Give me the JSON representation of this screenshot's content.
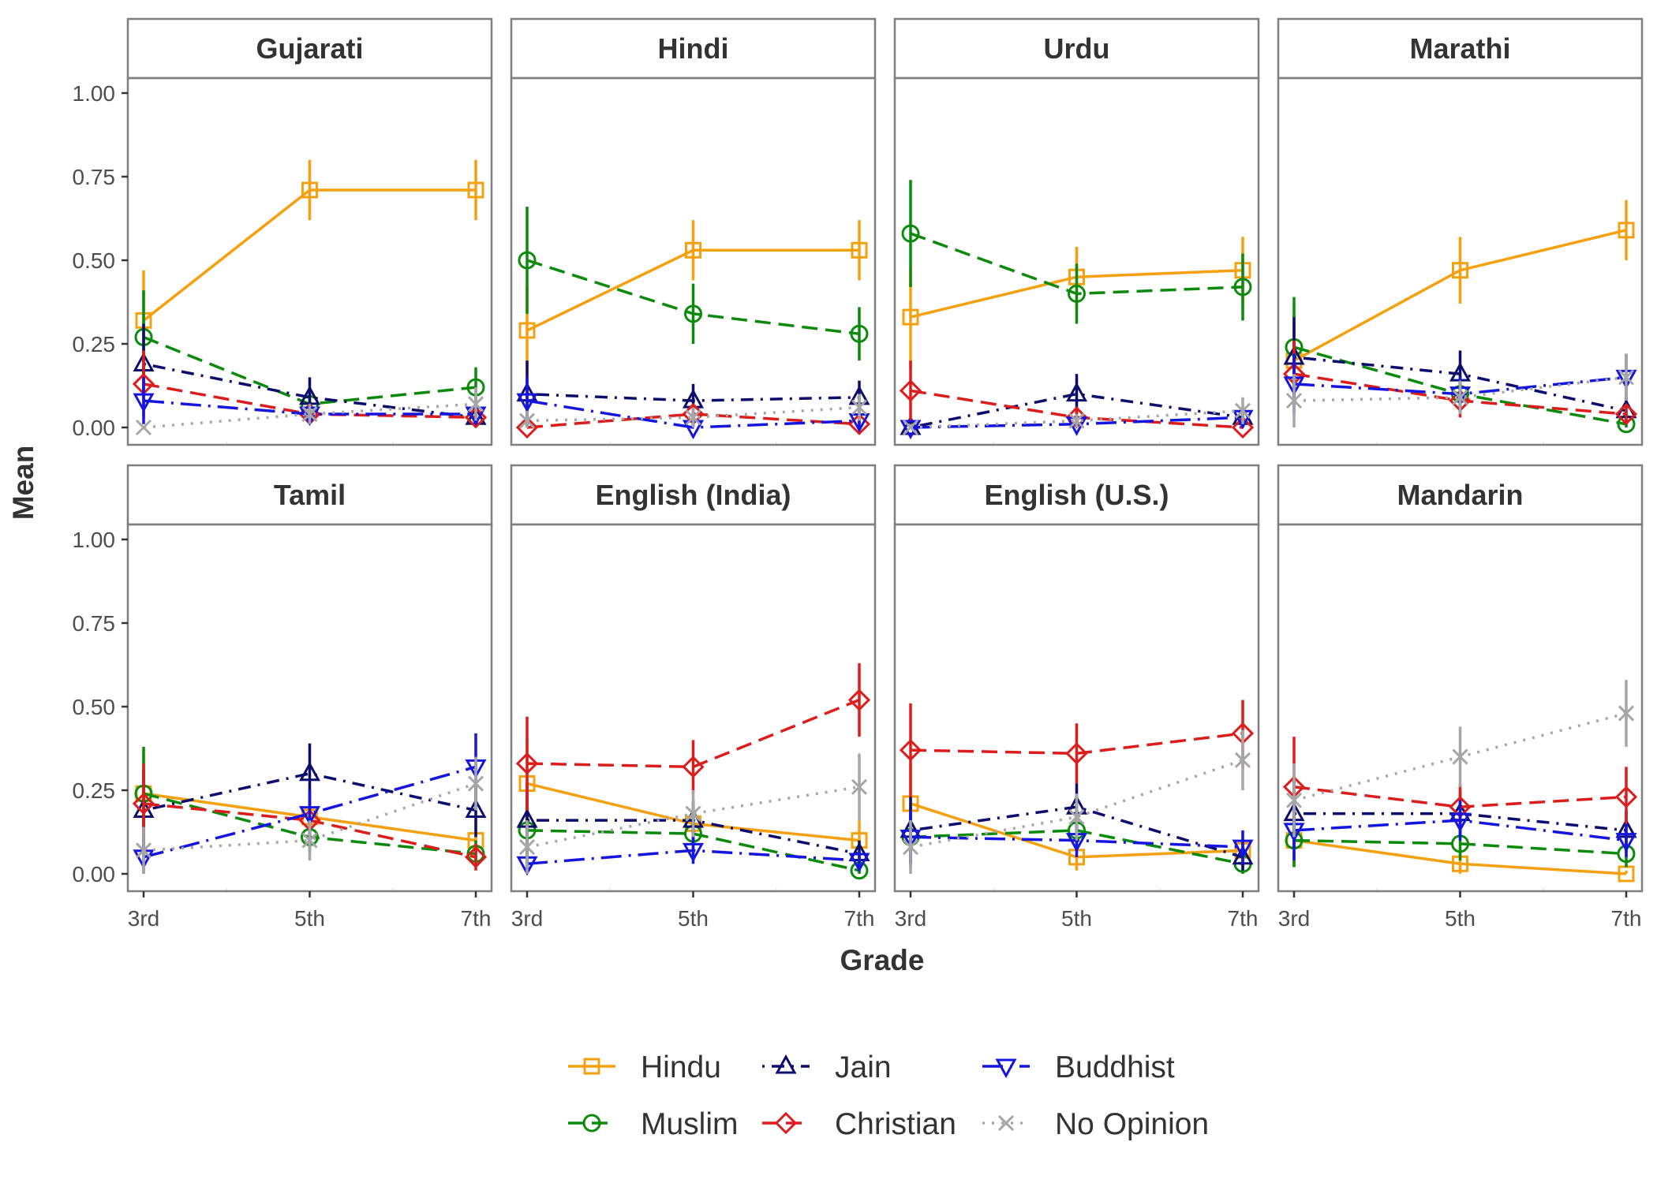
{
  "chart_data": {
    "type": "line",
    "xlabel": "Grade",
    "ylabel": "Mean",
    "categories": [
      "3rd",
      "5th",
      "7th"
    ],
    "ylim": [
      0,
      1
    ],
    "y_ticks": [
      "0.00",
      "0.25",
      "0.50",
      "0.75",
      "1.00"
    ],
    "grid": false,
    "error_bars": true,
    "legend_position": "bottom",
    "series_styles": [
      {
        "name": "Hindu",
        "color": "#F5A00F",
        "marker": "square",
        "dash": "solid"
      },
      {
        "name": "Muslim",
        "color": "#0B8A0B",
        "marker": "circle",
        "dash": "dashed"
      },
      {
        "name": "Jain",
        "color": "#0D0D6E",
        "marker": "triangle-up",
        "dash": "dotdash"
      },
      {
        "name": "Christian",
        "color": "#DD1C1C",
        "marker": "diamond",
        "dash": "dashed"
      },
      {
        "name": "Buddhist",
        "color": "#1515E0",
        "marker": "triangle-down",
        "dash": "longdash-dot"
      },
      {
        "name": "No Opinion",
        "color": "#A6A6A6",
        "marker": "cross",
        "dash": "dotted"
      }
    ],
    "panels": [
      {
        "title": "Gujarati",
        "series": [
          {
            "name": "Hindu",
            "values": [
              0.32,
              0.71,
              0.71
            ],
            "errors": [
              0.15,
              0.09,
              0.09
            ]
          },
          {
            "name": "Muslim",
            "values": [
              0.27,
              0.07,
              0.12
            ],
            "errors": [
              0.14,
              0.05,
              0.06
            ]
          },
          {
            "name": "Jain",
            "values": [
              0.19,
              0.09,
              0.03
            ],
            "errors": [
              0.12,
              0.06,
              0.03
            ]
          },
          {
            "name": "Christian",
            "values": [
              0.13,
              0.04,
              0.03
            ],
            "errors": [
              0.1,
              0.03,
              0.03
            ]
          },
          {
            "name": "Buddhist",
            "values": [
              0.08,
              0.04,
              0.04
            ],
            "errors": [
              0.07,
              0.03,
              0.03
            ]
          },
          {
            "name": "No Opinion",
            "values": [
              0.0,
              0.04,
              0.07
            ],
            "errors": [
              0.0,
              0.03,
              0.05
            ]
          }
        ]
      },
      {
        "title": "Hindi",
        "series": [
          {
            "name": "Hindu",
            "values": [
              0.29,
              0.53,
              0.53
            ],
            "errors": [
              0.13,
              0.09,
              0.09
            ]
          },
          {
            "name": "Muslim",
            "values": [
              0.5,
              0.34,
              0.28
            ],
            "errors": [
              0.16,
              0.09,
              0.08
            ]
          },
          {
            "name": "Jain",
            "values": [
              0.1,
              0.08,
              0.09
            ],
            "errors": [
              0.1,
              0.05,
              0.05
            ]
          },
          {
            "name": "Christian",
            "values": [
              0.0,
              0.04,
              0.01
            ],
            "errors": [
              0.0,
              0.03,
              0.02
            ]
          },
          {
            "name": "Buddhist",
            "values": [
              0.08,
              0.0,
              0.02
            ],
            "errors": [
              0.07,
              0.01,
              0.02
            ]
          },
          {
            "name": "No Opinion",
            "values": [
              0.02,
              0.03,
              0.06
            ],
            "errors": [
              0.03,
              0.03,
              0.04
            ]
          }
        ]
      },
      {
        "title": "Urdu",
        "series": [
          {
            "name": "Hindu",
            "values": [
              0.33,
              0.45,
              0.47
            ],
            "errors": [
              0.15,
              0.09,
              0.1
            ]
          },
          {
            "name": "Muslim",
            "values": [
              0.58,
              0.4,
              0.42
            ],
            "errors": [
              0.16,
              0.09,
              0.1
            ]
          },
          {
            "name": "Jain",
            "values": [
              0.0,
              0.1,
              0.03
            ],
            "errors": [
              0.02,
              0.06,
              0.03
            ]
          },
          {
            "name": "Christian",
            "values": [
              0.11,
              0.03,
              0.0
            ],
            "errors": [
              0.09,
              0.03,
              0.01
            ]
          },
          {
            "name": "Buddhist",
            "values": [
              0.0,
              0.01,
              0.03
            ],
            "errors": [
              0.01,
              0.02,
              0.03
            ]
          },
          {
            "name": "No Opinion",
            "values": [
              0.0,
              0.02,
              0.05
            ],
            "errors": [
              0.01,
              0.02,
              0.04
            ]
          }
        ]
      },
      {
        "title": "Marathi",
        "series": [
          {
            "name": "Hindu",
            "values": [
              0.2,
              0.47,
              0.59
            ],
            "errors": [
              0.12,
              0.1,
              0.09
            ]
          },
          {
            "name": "Muslim",
            "values": [
              0.24,
              0.1,
              0.01
            ],
            "errors": [
              0.15,
              0.06,
              0.02
            ]
          },
          {
            "name": "Jain",
            "values": [
              0.21,
              0.16,
              0.05
            ],
            "errors": [
              0.12,
              0.07,
              0.04
            ]
          },
          {
            "name": "Christian",
            "values": [
              0.16,
              0.08,
              0.04
            ],
            "errors": [
              0.1,
              0.05,
              0.03
            ]
          },
          {
            "name": "Buddhist",
            "values": [
              0.13,
              0.1,
              0.15
            ],
            "errors": [
              0.09,
              0.05,
              0.07
            ]
          },
          {
            "name": "No Opinion",
            "values": [
              0.08,
              0.09,
              0.15
            ],
            "errors": [
              0.08,
              0.05,
              0.07
            ]
          }
        ]
      },
      {
        "title": "Tamil",
        "series": [
          {
            "name": "Hindu",
            "values": [
              0.24,
              0.17,
              0.1
            ],
            "errors": [
              0.12,
              0.07,
              0.06
            ]
          },
          {
            "name": "Muslim",
            "values": [
              0.24,
              0.11,
              0.06
            ],
            "errors": [
              0.14,
              0.05,
              0.04
            ]
          },
          {
            "name": "Jain",
            "values": [
              0.19,
              0.3,
              0.19
            ],
            "errors": [
              0.12,
              0.09,
              0.08
            ]
          },
          {
            "name": "Christian",
            "values": [
              0.21,
              0.16,
              0.05
            ],
            "errors": [
              0.12,
              0.06,
              0.04
            ]
          },
          {
            "name": "Buddhist",
            "values": [
              0.05,
              0.18,
              0.32
            ],
            "errors": [
              0.06,
              0.07,
              0.1
            ]
          },
          {
            "name": "No Opinion",
            "values": [
              0.07,
              0.1,
              0.27
            ],
            "errors": [
              0.07,
              0.06,
              0.08
            ]
          }
        ]
      },
      {
        "title": "English (India)",
        "series": [
          {
            "name": "Hindu",
            "values": [
              0.27,
              0.15,
              0.1
            ],
            "errors": [
              0.13,
              0.06,
              0.06
            ]
          },
          {
            "name": "Muslim",
            "values": [
              0.13,
              0.12,
              0.01
            ],
            "errors": [
              0.1,
              0.06,
              0.02
            ]
          },
          {
            "name": "Jain",
            "values": [
              0.16,
              0.16,
              0.06
            ],
            "errors": [
              0.11,
              0.06,
              0.04
            ]
          },
          {
            "name": "Christian",
            "values": [
              0.33,
              0.32,
              0.52
            ],
            "errors": [
              0.14,
              0.08,
              0.11
            ]
          },
          {
            "name": "Buddhist",
            "values": [
              0.03,
              0.07,
              0.04
            ],
            "errors": [
              0.04,
              0.04,
              0.03
            ]
          },
          {
            "name": "No Opinion",
            "values": [
              0.08,
              0.18,
              0.26
            ],
            "errors": [
              0.08,
              0.07,
              0.1
            ]
          }
        ]
      },
      {
        "title": "English (U.S.)",
        "series": [
          {
            "name": "Hindu",
            "values": [
              0.21,
              0.05,
              0.07
            ],
            "errors": [
              0.12,
              0.04,
              0.05
            ]
          },
          {
            "name": "Muslim",
            "values": [
              0.11,
              0.13,
              0.03
            ],
            "errors": [
              0.09,
              0.06,
              0.03
            ]
          },
          {
            "name": "Jain",
            "values": [
              0.13,
              0.2,
              0.05
            ],
            "errors": [
              0.1,
              0.07,
              0.04
            ]
          },
          {
            "name": "Christian",
            "values": [
              0.37,
              0.36,
              0.42
            ],
            "errors": [
              0.14,
              0.09,
              0.1
            ]
          },
          {
            "name": "Buddhist",
            "values": [
              0.11,
              0.1,
              0.08
            ],
            "errors": [
              0.08,
              0.05,
              0.05
            ]
          },
          {
            "name": "No Opinion",
            "values": [
              0.08,
              0.17,
              0.34
            ],
            "errors": [
              0.08,
              0.07,
              0.09
            ]
          }
        ]
      },
      {
        "title": "Mandarin",
        "series": [
          {
            "name": "Hindu",
            "values": [
              0.1,
              0.03,
              0.0
            ],
            "errors": [
              0.08,
              0.03,
              0.01
            ]
          },
          {
            "name": "Muslim",
            "values": [
              0.1,
              0.09,
              0.06
            ],
            "errors": [
              0.08,
              0.05,
              0.04
            ]
          },
          {
            "name": "Jain",
            "values": [
              0.18,
              0.18,
              0.13
            ],
            "errors": [
              0.1,
              0.07,
              0.06
            ]
          },
          {
            "name": "Christian",
            "values": [
              0.26,
              0.2,
              0.23
            ],
            "errors": [
              0.15,
              0.07,
              0.09
            ]
          },
          {
            "name": "Buddhist",
            "values": [
              0.13,
              0.16,
              0.1
            ],
            "errors": [
              0.09,
              0.06,
              0.05
            ]
          },
          {
            "name": "No Opinion",
            "values": [
              0.22,
              0.35,
              0.48
            ],
            "errors": [
              0.11,
              0.09,
              0.1
            ]
          }
        ]
      }
    ]
  }
}
